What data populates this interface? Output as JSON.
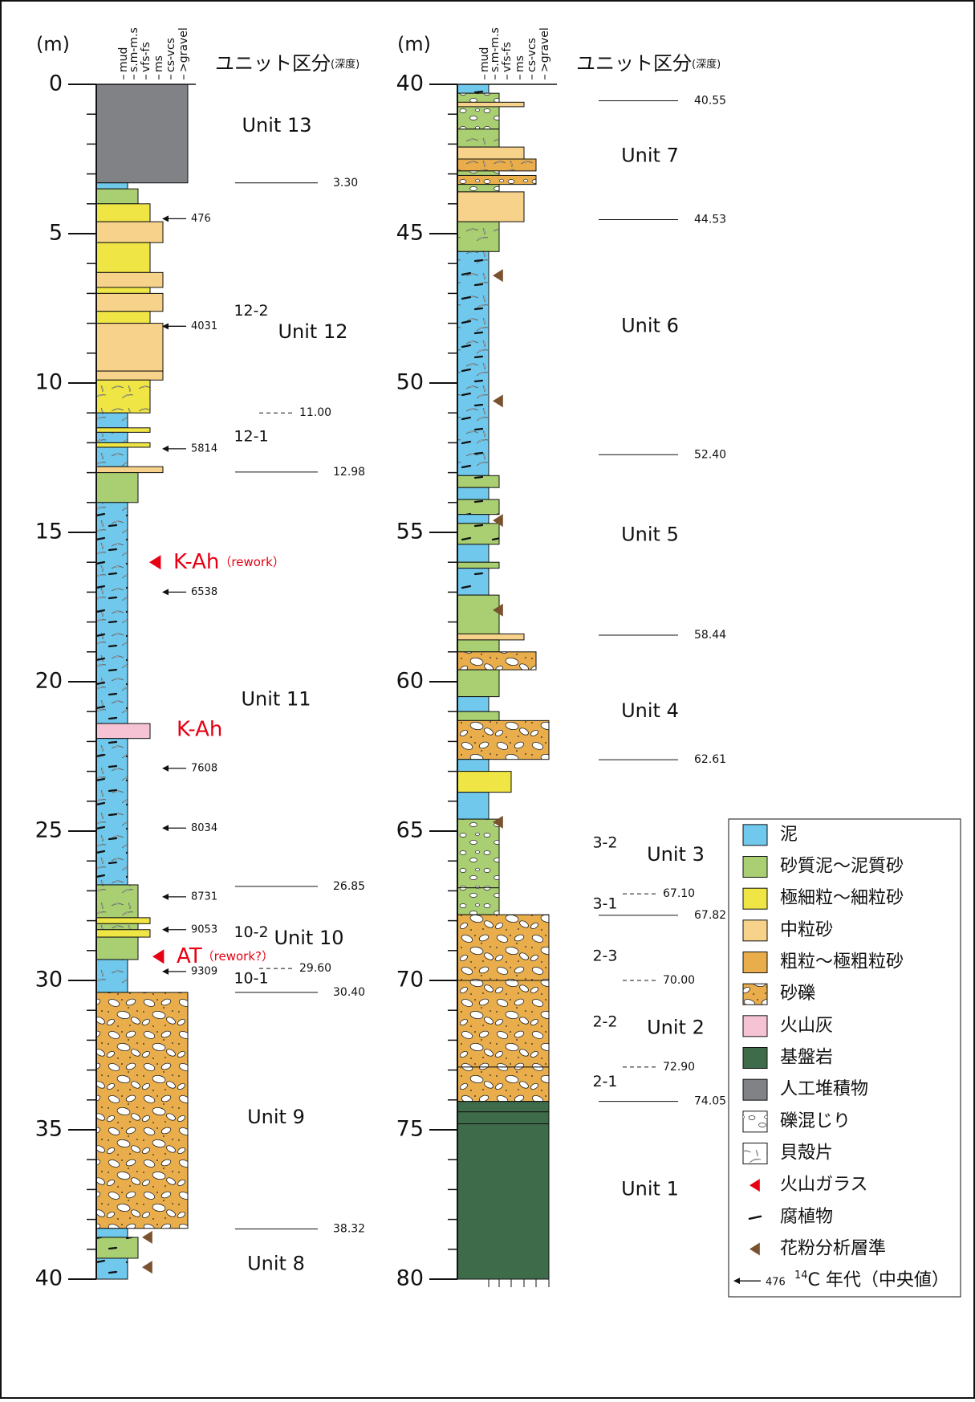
{
  "header": {
    "unit": "(m)",
    "title": "ユニット区分",
    "title_note": "(深度)",
    "grain_scale": [
      "mud",
      "s.m-m.s",
      "vfs-fs",
      "ms",
      "cs-vcs",
      ">gravel"
    ]
  },
  "columns": [
    {
      "ylim": [
        0,
        40
      ],
      "yticks": [
        0,
        5,
        10,
        15,
        20,
        25,
        30,
        35,
        40
      ],
      "boundaries": [
        {
          "value": 3.3,
          "label": "3.30"
        },
        {
          "value": 11,
          "label": "11.00",
          "dashed": true
        },
        {
          "value": 12.98,
          "label": "12.98"
        },
        {
          "value": 26.85,
          "label": "26.85"
        },
        {
          "value": 29.6,
          "label": "29.60",
          "dashed": true
        },
        {
          "value": 30.4,
          "label": "30.40"
        },
        {
          "value": 38.32,
          "label": "38.32"
        }
      ],
      "units": [
        "Unit 13",
        "12-2",
        "Unit 12",
        "12-1",
        "Unit 11",
        "10-2",
        "Unit 10",
        "10-1",
        "Unit 9",
        "Unit 8"
      ],
      "ages": [
        476,
        4031,
        5814,
        6538,
        7608,
        8034,
        8731,
        9053,
        9309
      ],
      "tephra": [
        {
          "name": "K-Ah",
          "note": "（rework）"
        },
        {
          "name": "K-Ah"
        },
        {
          "name": "AT",
          "note": "（rework?）"
        }
      ]
    },
    {
      "ylim": [
        40,
        80
      ],
      "yticks": [
        40,
        45,
        50,
        55,
        60,
        65,
        70,
        75,
        80
      ],
      "boundaries": [
        {
          "value": 40.55,
          "label": "40.55"
        },
        {
          "value": 44.53,
          "label": "44.53"
        },
        {
          "value": 52.4,
          "label": "52.40"
        },
        {
          "value": 58.44,
          "label": "58.44"
        },
        {
          "value": 62.61,
          "label": "62.61"
        },
        {
          "value": 67.1,
          "label": "67.10",
          "dashed": true
        },
        {
          "value": 67.82,
          "label": "67.82"
        },
        {
          "value": 70,
          "label": "70.00",
          "dashed": true
        },
        {
          "value": 72.9,
          "label": "72.90",
          "dashed": true
        },
        {
          "value": 74.05,
          "label": "74.05"
        }
      ],
      "units": [
        "Unit 7",
        "Unit 6",
        "Unit 5",
        "Unit 4",
        "3-2",
        "Unit 3",
        "3-1",
        "2-3",
        "2-2",
        "Unit 2",
        "2-1",
        "Unit 1"
      ]
    }
  ],
  "legend": {
    "items": [
      "泥",
      "砂質泥～泥質砂",
      "極細粒～細粒砂",
      "中粒砂",
      "粗粒～極粗粒砂",
      "砂礫",
      "火山灰",
      "基盤岩",
      "人工堆積物",
      "礫混じり",
      "貝殻片",
      "火山ガラス",
      "腐植物",
      "花粉分析層準"
    ],
    "age_example": 476,
    "isotope": "14",
    "age_label": "C 年代（中央値）"
  }
}
